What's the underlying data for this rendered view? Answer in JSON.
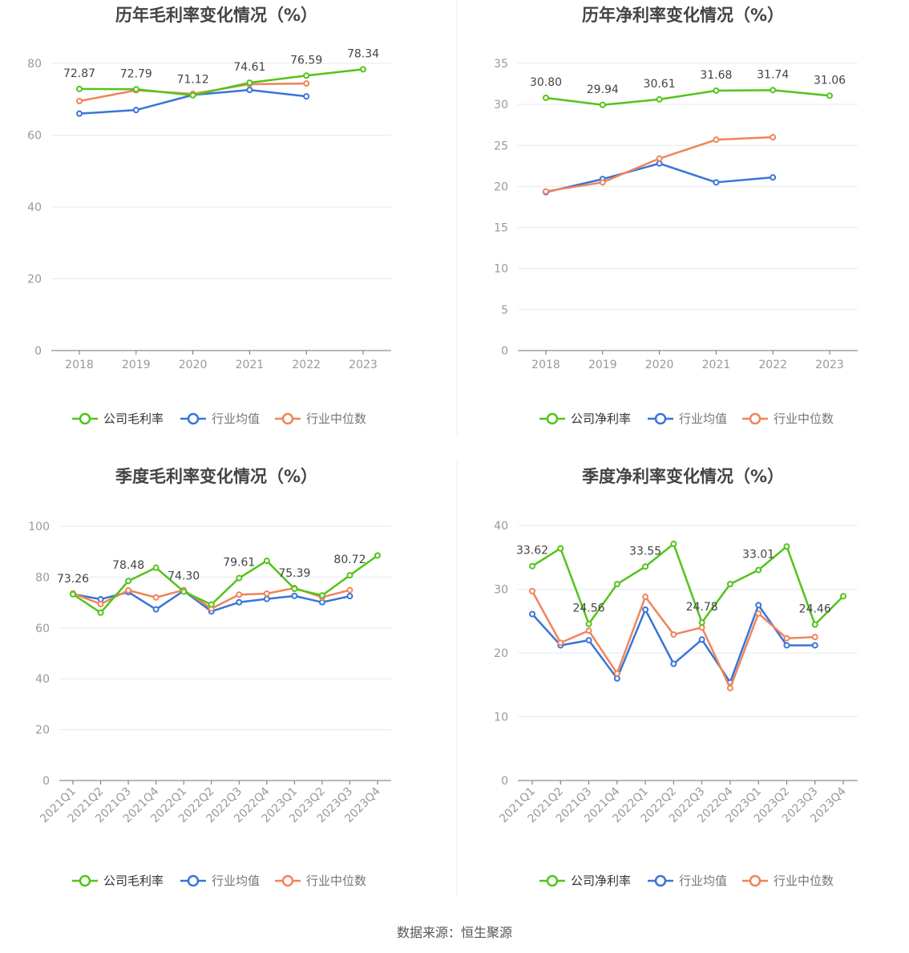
{
  "source_text": "数据来源：恒生聚源",
  "colors": {
    "company": "#52c41a",
    "avg": "#3875d7",
    "median": "#f0845a",
    "grid": "#e6e8f0",
    "axis": "#6e7079"
  },
  "chart_data": [
    {
      "id": "annual-gross",
      "type": "line",
      "title": "历年毛利率变化情况（%）",
      "categories": [
        "2018",
        "2019",
        "2020",
        "2021",
        "2022",
        "2023"
      ],
      "ylim": [
        0,
        80
      ],
      "yticks": [
        0,
        20,
        40,
        60,
        80
      ],
      "series": [
        {
          "name": "公司毛利率",
          "key": "company",
          "values": [
            72.87,
            72.79,
            71.12,
            74.61,
            76.59,
            78.34
          ]
        },
        {
          "name": "行业均值",
          "key": "avg",
          "values": [
            66.0,
            67.0,
            71.2,
            72.6,
            70.8,
            null
          ]
        },
        {
          "name": "行业中位数",
          "key": "median",
          "values": [
            69.5,
            72.5,
            71.5,
            74.2,
            74.4,
            null
          ]
        }
      ],
      "labels": [
        "72.87",
        "72.79",
        "71.12",
        "74.61",
        "76.59",
        "78.34"
      ],
      "label_indices": [
        0,
        1,
        2,
        3,
        4,
        5
      ],
      "rotate_x": false
    },
    {
      "id": "annual-net",
      "type": "line",
      "title": "历年净利率变化情况（%）",
      "categories": [
        "2018",
        "2019",
        "2020",
        "2021",
        "2022",
        "2023"
      ],
      "ylim": [
        0,
        35
      ],
      "yticks": [
        0,
        5,
        10,
        15,
        20,
        25,
        30,
        35
      ],
      "series": [
        {
          "name": "公司净利率",
          "key": "company",
          "values": [
            30.8,
            29.94,
            30.61,
            31.68,
            31.74,
            31.06
          ]
        },
        {
          "name": "行业均值",
          "key": "avg",
          "values": [
            19.3,
            20.9,
            22.8,
            20.5,
            21.1,
            null
          ]
        },
        {
          "name": "行业中位数",
          "key": "median",
          "values": [
            19.4,
            20.5,
            23.4,
            25.7,
            26.0,
            null
          ]
        }
      ],
      "labels": [
        "30.80",
        "29.94",
        "30.61",
        "31.68",
        "31.74",
        "31.06"
      ],
      "label_indices": [
        0,
        1,
        2,
        3,
        4,
        5
      ],
      "rotate_x": false
    },
    {
      "id": "quarterly-gross",
      "type": "line",
      "title": "季度毛利率变化情况（%）",
      "categories": [
        "2021Q1",
        "2021Q2",
        "2021Q3",
        "2021Q4",
        "2022Q1",
        "2022Q2",
        "2022Q3",
        "2022Q4",
        "2023Q1",
        "2023Q2",
        "2023Q3",
        "2023Q4"
      ],
      "ylim": [
        0,
        100
      ],
      "yticks": [
        0,
        20,
        40,
        60,
        80,
        100
      ],
      "series": [
        {
          "name": "公司毛利率",
          "key": "company",
          "values": [
            73.26,
            66.0,
            78.48,
            83.7,
            74.3,
            69.2,
            79.61,
            86.4,
            75.39,
            72.8,
            80.72,
            88.5
          ]
        },
        {
          "name": "行业均值",
          "key": "avg",
          "values": [
            73.3,
            71.3,
            74.1,
            67.3,
            74.6,
            66.5,
            70.1,
            71.4,
            72.6,
            70.1,
            72.5,
            null
          ]
        },
        {
          "name": "行业中位数",
          "key": "median",
          "values": [
            73.6,
            69.4,
            74.8,
            72.0,
            74.9,
            67.6,
            73.1,
            73.5,
            75.7,
            72.1,
            74.9,
            null
          ]
        }
      ],
      "labels": [
        "73.26",
        "78.48",
        "74.30",
        "79.61",
        "75.39",
        "80.72"
      ],
      "label_indices": [
        0,
        2,
        4,
        6,
        8,
        10
      ],
      "rotate_x": true
    },
    {
      "id": "quarterly-net",
      "type": "line",
      "title": "季度净利率变化情况（%）",
      "categories": [
        "2021Q1",
        "2021Q2",
        "2021Q3",
        "2021Q4",
        "2022Q1",
        "2022Q2",
        "2022Q3",
        "2022Q4",
        "2023Q1",
        "2023Q2",
        "2023Q3",
        "2023Q4"
      ],
      "ylim": [
        0,
        40
      ],
      "yticks": [
        0,
        10,
        20,
        30,
        40
      ],
      "series": [
        {
          "name": "公司净利率",
          "key": "company",
          "values": [
            33.62,
            36.4,
            24.56,
            30.8,
            33.55,
            37.1,
            24.78,
            30.8,
            33.01,
            36.7,
            24.46,
            28.9
          ]
        },
        {
          "name": "行业均值",
          "key": "avg",
          "values": [
            26.1,
            21.2,
            22.0,
            16.0,
            26.8,
            18.3,
            22.1,
            15.4,
            27.5,
            21.2,
            21.2,
            null
          ]
        },
        {
          "name": "行业中位数",
          "key": "median",
          "values": [
            29.7,
            21.6,
            23.5,
            16.8,
            28.8,
            22.9,
            24.0,
            14.5,
            26.2,
            22.3,
            22.5,
            null
          ]
        }
      ],
      "labels": [
        "33.62",
        "24.56",
        "33.55",
        "24.78",
        "33.01",
        "24.46"
      ],
      "label_indices": [
        0,
        2,
        4,
        6,
        8,
        10
      ],
      "rotate_x": true
    }
  ]
}
